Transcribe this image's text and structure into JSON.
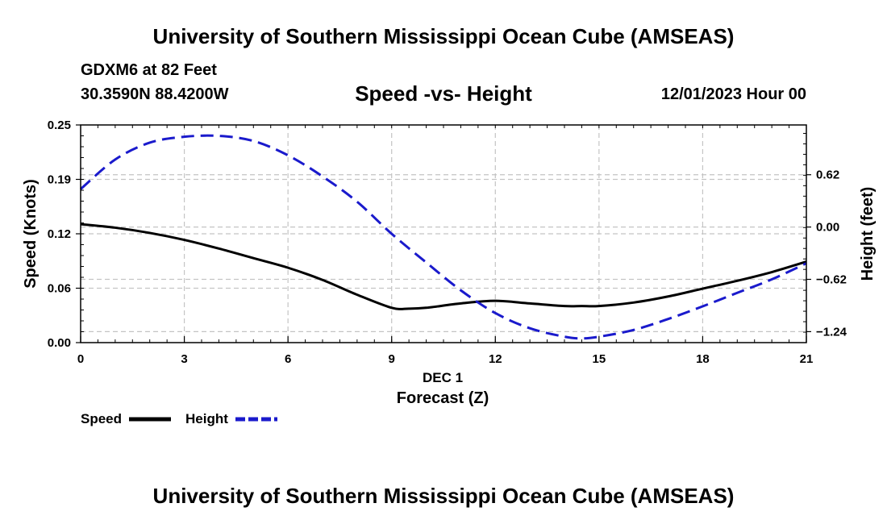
{
  "header": {
    "title_top": "University of Southern Mississippi Ocean Cube (AMSEAS)",
    "station": "GDXM6 at 82 Feet",
    "coords": "30.3590N  88.4200W",
    "subtitle": "Speed -vs- Height",
    "timestamp": "12/01/2023 Hour 00",
    "title_bottom": "University of Southern Mississippi Ocean Cube (AMSEAS)"
  },
  "chart_data": {
    "type": "line",
    "title": "Speed -vs- Height",
    "xlabel_date": "DEC 1",
    "xlabel": "Forecast (Z)",
    "ylabel_left": "Speed (Knots)",
    "ylabel_right": "Height (feet)",
    "xlim": [
      0,
      21
    ],
    "ylim_left": [
      0,
      0.25
    ],
    "ylim_right": [
      -1.37,
      1.21
    ],
    "x_ticks": [
      "0",
      "3",
      "6",
      "9",
      "12",
      "15",
      "18",
      "21"
    ],
    "y_left_ticks": [
      {
        "value": 0.0,
        "label": "0.00"
      },
      {
        "value": 0.0625,
        "label": "0.06"
      },
      {
        "value": 0.125,
        "label": "0.12"
      },
      {
        "value": 0.1875,
        "label": "0.19"
      },
      {
        "value": 0.25,
        "label": "0.25"
      }
    ],
    "y_right_ticks": [
      {
        "value": 0.62,
        "label": "0.62"
      },
      {
        "value": 0.0,
        "label": "0.00"
      },
      {
        "value": -0.62,
        "label": "−0.62"
      },
      {
        "value": -1.24,
        "label": "−1.24"
      }
    ],
    "grid": true,
    "series": [
      {
        "name": "Speed",
        "axis": "left",
        "color": "#000000",
        "style": "solid",
        "x": [
          0,
          1,
          2,
          3,
          4,
          5,
          6,
          7,
          8,
          9,
          9.5,
          10,
          11,
          12,
          13,
          14,
          14.5,
          15,
          16,
          17,
          18,
          19,
          20,
          21
        ],
        "values": [
          0.136,
          0.132,
          0.126,
          0.118,
          0.108,
          0.097,
          0.086,
          0.072,
          0.055,
          0.04,
          0.039,
          0.04,
          0.045,
          0.048,
          0.045,
          0.042,
          0.042,
          0.042,
          0.046,
          0.053,
          0.062,
          0.071,
          0.081,
          0.093
        ]
      },
      {
        "name": "Height",
        "axis": "right",
        "color": "#1a1acc",
        "style": "dashed",
        "x": [
          0,
          1,
          2,
          3,
          4,
          5,
          6,
          7,
          8,
          9,
          10,
          11,
          12,
          13,
          14,
          14.5,
          15,
          16,
          17,
          18,
          19,
          20,
          21
        ],
        "values": [
          0.45,
          0.8,
          1.0,
          1.07,
          1.08,
          1.02,
          0.85,
          0.6,
          0.3,
          -0.08,
          -0.42,
          -0.75,
          -1.02,
          -1.2,
          -1.3,
          -1.32,
          -1.3,
          -1.22,
          -1.09,
          -0.94,
          -0.78,
          -0.62,
          -0.43
        ]
      }
    ],
    "legend": [
      {
        "name": "Speed",
        "color": "#000000",
        "style": "solid"
      },
      {
        "name": "Height",
        "color": "#1a1acc",
        "style": "dashed"
      }
    ],
    "legend_position": "bottom-left"
  }
}
